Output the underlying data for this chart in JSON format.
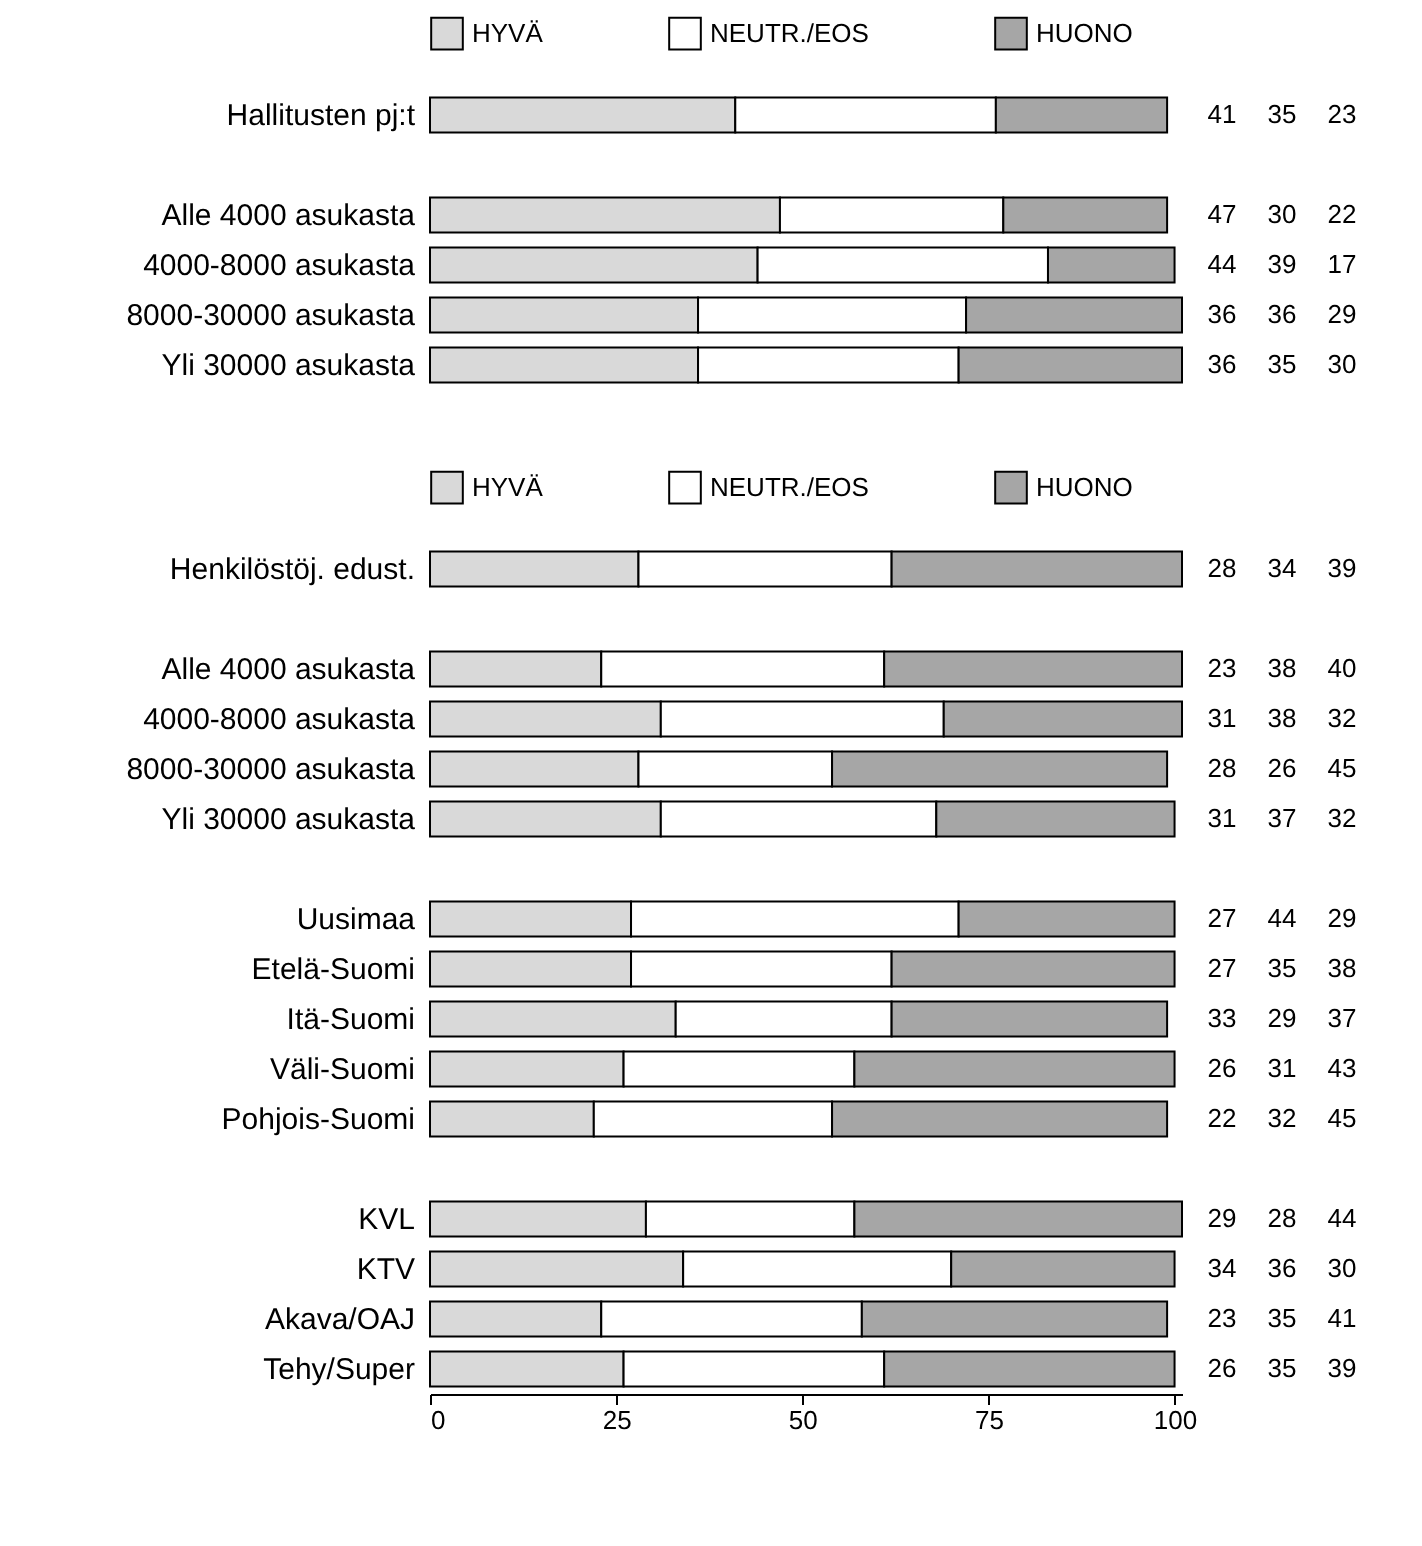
{
  "chart_data": [
    {
      "type": "bar",
      "orientation": "horizontal",
      "stacked": true,
      "legend": "top",
      "tick_labels": "y",
      "data_labels": true,
      "xlim": [
        0,
        101
      ],
      "categories": [
        "Hallitusten pj:t",
        null,
        "Alle 4000 asukasta",
        "4000-8000 asukasta",
        "8000-30000 asukasta",
        "Yli 30000 asukasta"
      ],
      "series": [
        {
          "name": "HYVÄ",
          "color": "#d9d9d9",
          "values": [
            41,
            null,
            47,
            44,
            36,
            36
          ]
        },
        {
          "name": "NEUTR./EOS",
          "color": "#ffffff",
          "values": [
            35,
            null,
            30,
            39,
            36,
            35
          ]
        },
        {
          "name": "HUONO",
          "color": "#a6a6a6",
          "values": [
            23,
            null,
            22,
            17,
            29,
            30
          ]
        }
      ]
    },
    {
      "type": "bar",
      "orientation": "horizontal",
      "stacked": true,
      "legend": "top",
      "data_labels": true,
      "xlim": [
        0,
        101
      ],
      "xticks": [
        0,
        25,
        50,
        75,
        100
      ],
      "categories": [
        "Henkilöstöj. edust.",
        null,
        "Alle 4000 asukasta",
        "4000-8000 asukasta",
        "8000-30000 asukasta",
        "Yli 30000 asukasta",
        null,
        "Uusimaa",
        "Etelä-Suomi",
        "Itä-Suomi",
        "Väli-Suomi",
        "Pohjois-Suomi",
        null,
        "KVL",
        "KTV",
        "Akava/OAJ",
        "Tehy/Super"
      ],
      "series": [
        {
          "name": "HYVÄ",
          "color": "#d9d9d9",
          "values": [
            28,
            null,
            23,
            31,
            28,
            31,
            null,
            27,
            27,
            33,
            26,
            22,
            null,
            29,
            34,
            23,
            26
          ]
        },
        {
          "name": "NEUTR./EOS",
          "color": "#ffffff",
          "values": [
            34,
            null,
            38,
            38,
            26,
            37,
            null,
            44,
            35,
            29,
            31,
            32,
            null,
            28,
            36,
            35,
            35
          ]
        },
        {
          "name": "HUONO",
          "color": "#a6a6a6",
          "values": [
            39,
            null,
            40,
            32,
            45,
            32,
            null,
            29,
            38,
            37,
            43,
            45,
            null,
            44,
            30,
            41,
            39
          ]
        }
      ]
    }
  ]
}
